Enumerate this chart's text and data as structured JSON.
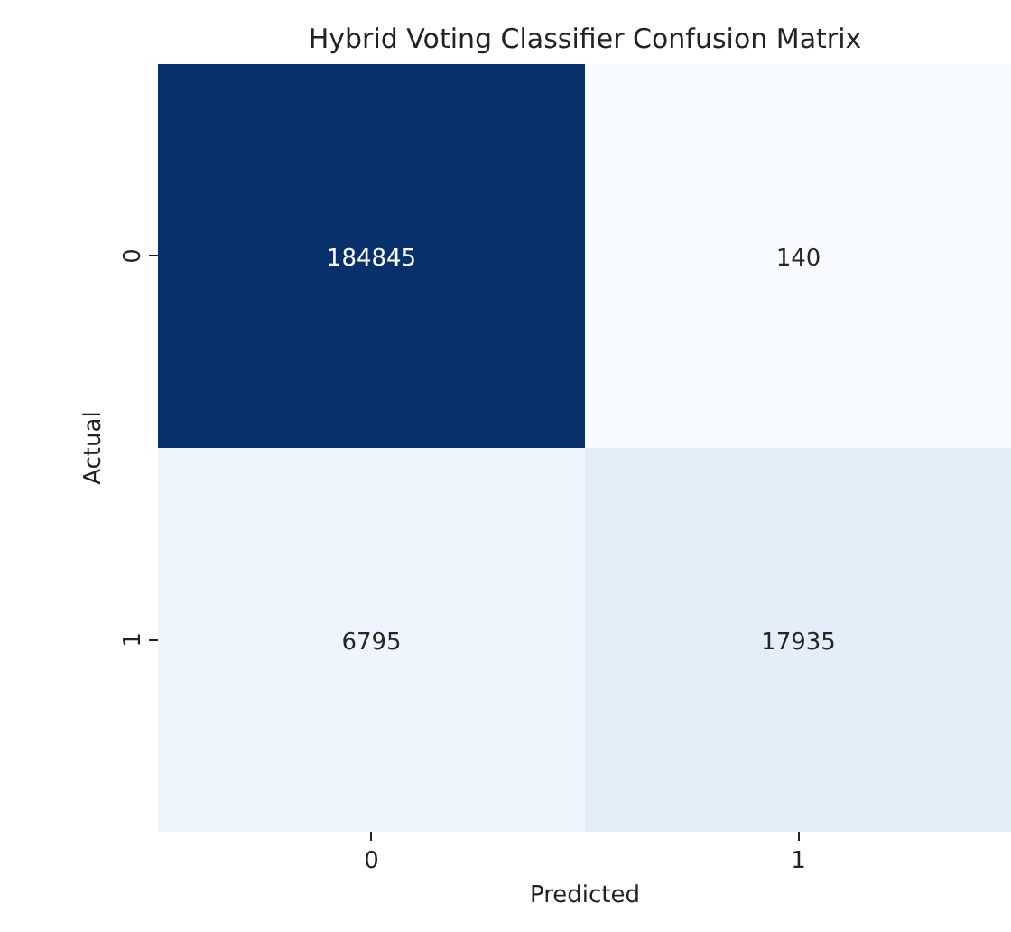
{
  "chart_data": {
    "type": "heatmap",
    "title": "Hybrid Voting Classifier Confusion Matrix",
    "xlabel": "Predicted",
    "ylabel": "Actual",
    "categories": [
      "0",
      "1"
    ],
    "y_categories": [
      "0",
      "1"
    ],
    "cells": [
      [
        184845,
        140
      ],
      [
        6795,
        17935
      ]
    ],
    "colors": [
      [
        "#08306b",
        "#f7fbff"
      ],
      [
        "#eef5fc",
        "#e3eef9"
      ]
    ],
    "data_labels": true
  }
}
